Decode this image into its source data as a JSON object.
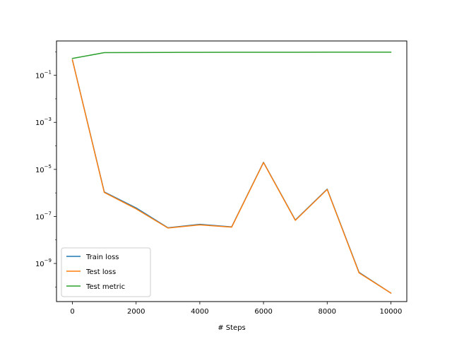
{
  "chart_data": {
    "type": "line",
    "title": "",
    "xlabel": "# Steps",
    "ylabel": "",
    "yscale": "log",
    "xlim": [
      -500,
      10500
    ],
    "ylim_exponent": [
      -10.62,
      0.46
    ],
    "xticks": [
      0,
      2000,
      4000,
      6000,
      8000,
      10000
    ],
    "xtick_labels": [
      "0",
      "2000",
      "4000",
      "6000",
      "8000",
      "10000"
    ],
    "yticks_exponent": [
      -1,
      -3,
      -5,
      -7,
      -9
    ],
    "ytick_base": "10",
    "ytick_exponent_labels": [
      "−1",
      "−3",
      "−5",
      "−7",
      "−9"
    ],
    "grid": false,
    "legend_position": "lower-left",
    "x": [
      0,
      1000,
      2000,
      3000,
      4000,
      5000,
      6000,
      7000,
      8000,
      9000,
      10000
    ],
    "series": [
      {
        "name": "Train loss",
        "color": "#1f77b4",
        "values": [
          0.45,
          1.1e-06,
          2.3e-07,
          3.3e-08,
          4.6e-08,
          3.6e-08,
          2e-05,
          7e-08,
          1.45e-06,
          4.2e-10,
          5.5e-11
        ]
      },
      {
        "name": "Test loss",
        "color": "#ff7f0e",
        "values": [
          0.45,
          1.05e-06,
          2.1e-07,
          3.2e-08,
          4.4e-08,
          3.5e-08,
          1.95e-05,
          6.8e-08,
          1.4e-06,
          4e-10,
          5.5e-11
        ]
      },
      {
        "name": "Test metric",
        "color": "#2ca02c",
        "values": [
          0.52,
          0.92,
          0.93,
          0.94,
          0.945,
          0.95,
          0.95,
          0.955,
          0.96,
          0.96,
          0.96
        ]
      }
    ]
  }
}
